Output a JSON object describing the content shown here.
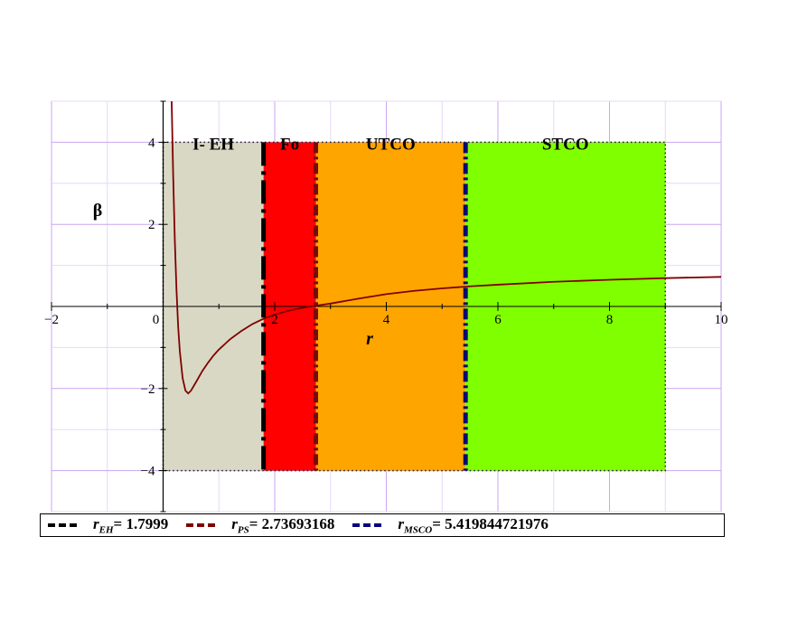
{
  "chart_data": {
    "type": "line",
    "xlabel": "r",
    "ylabel": "β",
    "xlim": [
      -2,
      10
    ],
    "ylim": [
      -5,
      5
    ],
    "x_ticks": [
      -2,
      0,
      2,
      4,
      6,
      8,
      10
    ],
    "y_ticks": [
      -4,
      -2,
      2,
      4
    ],
    "grid": true,
    "regions": [
      {
        "label": "I- EH",
        "x_start": 0,
        "x_end": 1.7999,
        "y_start": -4,
        "y_end": 4,
        "color": "#d8d8c4"
      },
      {
        "label": "Fo",
        "x_start": 1.7999,
        "x_end": 2.73693168,
        "y_start": -4,
        "y_end": 4,
        "color": "#ff0000"
      },
      {
        "label": "UTCO",
        "x_start": 2.73693168,
        "x_end": 5.419844721976,
        "y_start": -4,
        "y_end": 4,
        "color": "#ffa500"
      },
      {
        "label": "STCO",
        "x_start": 5.419844721976,
        "x_end": 9,
        "y_start": -4,
        "y_end": 4,
        "color": "#80ff00"
      }
    ],
    "vlines": [
      {
        "x": 1.7999,
        "color": "#000000"
      },
      {
        "x": 2.73693168,
        "color": "#7a0a0a"
      },
      {
        "x": 5.419844721976,
        "color": "#0a0a6e"
      }
    ],
    "curve": {
      "color": "#800000",
      "x": [
        0.15,
        0.18,
        0.21,
        0.24,
        0.27,
        0.3,
        0.35,
        0.4,
        0.45,
        0.5,
        0.6,
        0.7,
        0.8,
        0.9,
        1.0,
        1.2,
        1.4,
        1.6,
        1.8,
        2.0,
        2.2,
        2.4,
        2.6,
        2.8,
        3.0,
        3.5,
        4.0,
        4.5,
        5.0,
        5.5,
        6.0,
        7.0,
        8.0,
        9.0,
        10.0
      ],
      "y": [
        5.2,
        3.2,
        1.6,
        0.4,
        -0.5,
        -1.1,
        -1.75,
        -2.05,
        -2.12,
        -2.05,
        -1.82,
        -1.58,
        -1.38,
        -1.2,
        -1.05,
        -0.8,
        -0.6,
        -0.43,
        -0.3,
        -0.2,
        -0.12,
        -0.06,
        -0.01,
        0.03,
        0.07,
        0.19,
        0.3,
        0.38,
        0.44,
        0.49,
        0.53,
        0.6,
        0.65,
        0.69,
        0.72
      ]
    },
    "legend": {
      "placement": "bottom",
      "entries": [
        {
          "symbol": "r",
          "sub": "EH",
          "value": "= 1.7999",
          "color": "#000000"
        },
        {
          "symbol": "r",
          "sub": "PS",
          "value": "= 2.73693168",
          "color": "#800000"
        },
        {
          "symbol": "r",
          "sub": "MSCO",
          "value": "= 5.419844721976",
          "color": "#000080"
        }
      ]
    }
  }
}
